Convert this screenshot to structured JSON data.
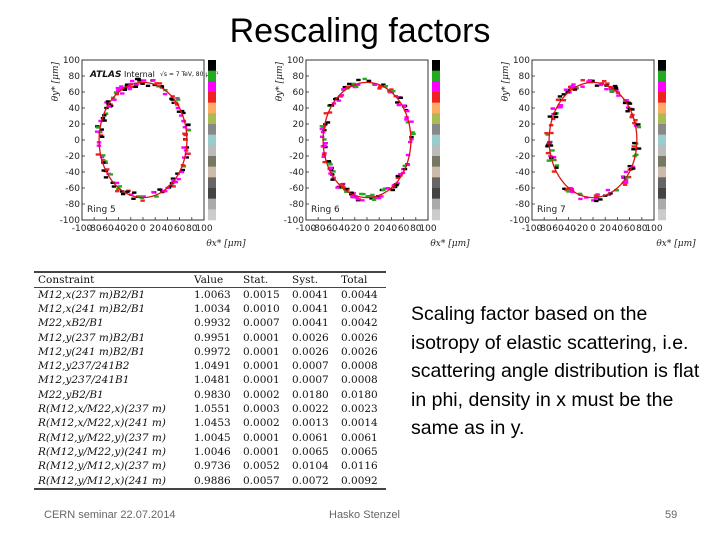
{
  "slide": {
    "title": "Rescaling factors",
    "description": "Scaling factor based on the isotropy of elastic scattering, i.e. scattering angle distribution is flat in phi, density in x must be the same as in y.",
    "footer_left": "CERN seminar 22.07.2014",
    "footer_center": "Hasko Stenzel",
    "page_number": "59"
  },
  "plots": {
    "y_ticks": [
      "100",
      "80",
      "60",
      "40",
      "20",
      "0",
      "-20",
      "-40",
      "-60",
      "-80",
      "-100"
    ],
    "x_ticks": [
      "-100",
      "-80",
      "-60",
      "-40",
      "-20",
      "0",
      "20",
      "40",
      "60",
      "80",
      "100"
    ],
    "xlabel": "θx* [μm]",
    "ylabel": "θy* [μm]",
    "atlas_label": "ATLAS",
    "internal_label": "Internal",
    "energy_label": "√s = 7 TeV, 80 μb⁻¹",
    "panels": [
      {
        "ring": "Ring 5"
      },
      {
        "ring": "Ring 6"
      },
      {
        "ring": "Ring 7"
      }
    ],
    "palette": [
      "#000000",
      "#22aa22",
      "#ff00ff",
      "#ee2222",
      "#ffaa66",
      "#aabb55",
      "#888888",
      "#99cccc",
      "#bbbbbb",
      "#777766",
      "#ccbbaa",
      "#666666",
      "#444444",
      "#aaaaaa",
      "#cccccc"
    ]
  },
  "table": {
    "headers": [
      "Constraint",
      "Value",
      "Stat.",
      "Syst.",
      "Total"
    ],
    "rows": [
      [
        "M12,x(237 m)B2/B1",
        "1.0063",
        "0.0015",
        "0.0041",
        "0.0044"
      ],
      [
        "M12,x(241 m)B2/B1",
        "1.0034",
        "0.0010",
        "0.0041",
        "0.0042"
      ],
      [
        "M22,xB2/B1",
        "0.9932",
        "0.0007",
        "0.0041",
        "0.0042"
      ],
      [
        "M12,y(237 m)B2/B1",
        "0.9951",
        "0.0001",
        "0.0026",
        "0.0026"
      ],
      [
        "M12,y(241 m)B2/B1",
        "0.9972",
        "0.0001",
        "0.0026",
        "0.0026"
      ],
      [
        "M12,y237/241B2",
        "1.0491",
        "0.0001",
        "0.0007",
        "0.0008"
      ],
      [
        "M12,y237/241B1",
        "1.0481",
        "0.0001",
        "0.0007",
        "0.0008"
      ],
      [
        "M22,yB2/B1",
        "0.9830",
        "0.0002",
        "0.0180",
        "0.0180"
      ],
      [
        "R(M12,x/M22,x)(237 m)",
        "1.0551",
        "0.0003",
        "0.0022",
        "0.0023"
      ],
      [
        "R(M12,x/M22,x)(241 m)",
        "1.0453",
        "0.0002",
        "0.0013",
        "0.0014"
      ],
      [
        "R(M12,y/M22,y)(237 m)",
        "1.0045",
        "0.0001",
        "0.0061",
        "0.0061"
      ],
      [
        "R(M12,y/M22,y)(241 m)",
        "1.0046",
        "0.0001",
        "0.0065",
        "0.0065"
      ],
      [
        "R(M12,y/M12,x)(237 m)",
        "0.9736",
        "0.0052",
        "0.0104",
        "0.0116"
      ],
      [
        "R(M12,y/M12,x)(241 m)",
        "0.9886",
        "0.0057",
        "0.0072",
        "0.0092"
      ]
    ]
  }
}
